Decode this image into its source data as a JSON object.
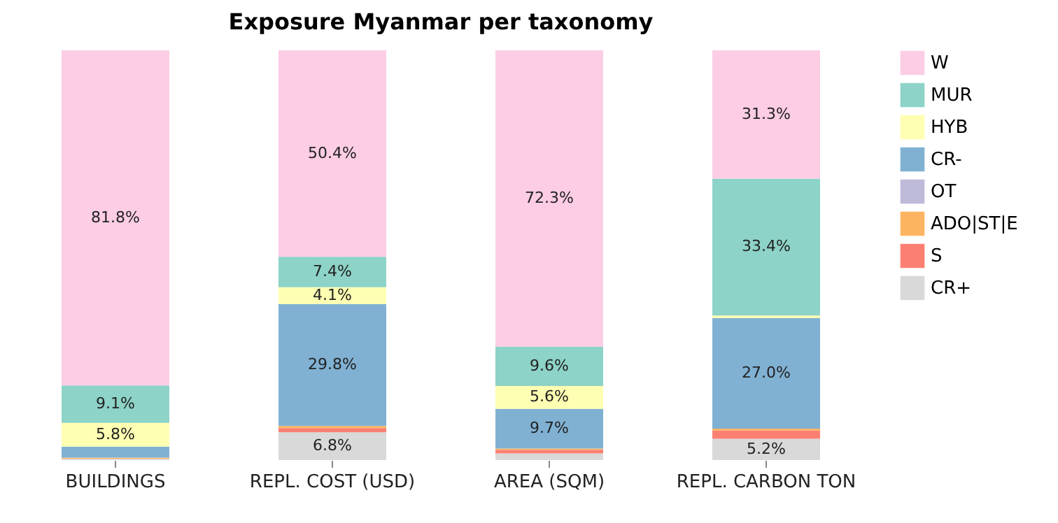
{
  "chart_data": {
    "type": "bar",
    "title": "Exposure Myanmar per taxonomy",
    "categories": [
      "BUILDINGS",
      "REPL. COST (USD)",
      "AREA (SQM)",
      "REPL. CARBON TON"
    ],
    "stacked": true,
    "legend": "right",
    "series": [
      {
        "name": "CR+",
        "color": "#d9d9d9",
        "values": [
          0.3,
          6.8,
          1.6,
          5.2
        ],
        "value_labels": [
          null,
          "6.8%",
          null,
          "5.2%"
        ]
      },
      {
        "name": "S",
        "color": "#fb8072",
        "values": [
          0.0,
          1.0,
          0.9,
          2.0
        ],
        "value_labels": [
          null,
          null,
          null,
          null
        ]
      },
      {
        "name": "ADO|ST|E",
        "color": "#fdb462",
        "values": [
          0.3,
          0.5,
          0.3,
          0.5
        ],
        "value_labels": [
          null,
          null,
          null,
          null
        ]
      },
      {
        "name": "OT",
        "color": "#bebada",
        "values": [
          0.0,
          0.0,
          0.0,
          0.0
        ],
        "value_labels": [
          null,
          null,
          null,
          null
        ]
      },
      {
        "name": "CR-",
        "color": "#80b1d3",
        "values": [
          2.7,
          29.8,
          9.7,
          27.0
        ],
        "value_labels": [
          null,
          "29.8%",
          "9.7%",
          "27.0%"
        ]
      },
      {
        "name": "HYB",
        "color": "#ffffb3",
        "values": [
          5.8,
          4.1,
          5.6,
          0.6
        ],
        "value_labels": [
          "5.8%",
          "4.1%",
          "5.6%",
          null
        ]
      },
      {
        "name": "MUR",
        "color": "#8dd3c7",
        "values": [
          9.1,
          7.4,
          9.6,
          33.4
        ],
        "value_labels": [
          "9.1%",
          "7.4%",
          "9.6%",
          "33.4%"
        ]
      },
      {
        "name": "W",
        "color": "#fccde5",
        "values": [
          81.8,
          50.4,
          72.3,
          31.3
        ],
        "value_labels": [
          "81.8%",
          "50.4%",
          "72.3%",
          "31.3%"
        ]
      }
    ]
  }
}
